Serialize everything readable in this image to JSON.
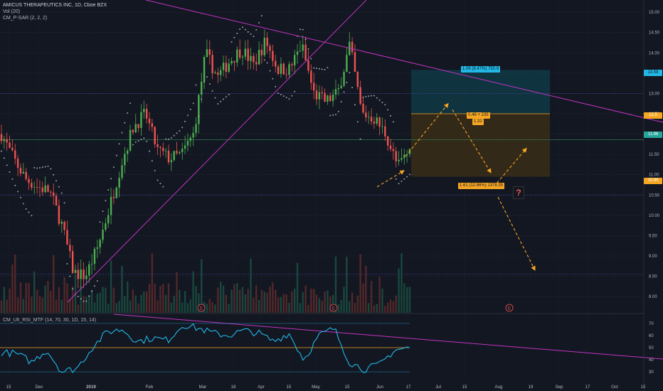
{
  "header": {
    "symbol": "AMICUS THERAPEUTICS INC, 1D, Cboe BZX",
    "vol": "Vol (20)",
    "psar": "CM_P-SAR (2, 2, 2)",
    "rsi": "CM_Ult_RSI_MTF (14, 70, 30, 1D, 15, 14)"
  },
  "colors": {
    "background": "#131722",
    "up": "#26a69a",
    "green_candle": "#4caf50",
    "down": "#ef5350",
    "trendline": "#c233c2",
    "projection": "#f5a623",
    "rsi_line": "#22b8e6",
    "target_zone": "#0e4a5a",
    "stop_zone": "#4a3513",
    "psar_dots": "#b2b5be",
    "mid_line": "#f5a623"
  },
  "badges": {
    "current_price": "13.58",
    "upper_price": "12.5",
    "mid_price": "11.86",
    "lower_price": "10.95",
    "target": "1.06 (8.47%) 750.9",
    "ratio_top": "0.46 + 235",
    "ratio_bottom": "1.32",
    "stop": "1.61 (12.86%) 1378.35",
    "question": "?"
  },
  "chart_data": {
    "type": "candlestick",
    "x_tick_labels": [
      "15",
      "Dec",
      "2019",
      "Feb",
      "Mar",
      "18",
      "Apr",
      "15",
      "May",
      "15",
      "Jun",
      "17",
      "Jul",
      "15",
      "Aug",
      "19",
      "Sep",
      "17",
      "Oct",
      "15"
    ],
    "price_axis": {
      "min": 7.6,
      "max": 15.3,
      "ticks": [
        "15.00",
        "14.50",
        "14.00",
        "13.50",
        "13.00",
        "12.50",
        "12.00",
        "11.50",
        "11.00",
        "10.50",
        "10.00",
        "9.50",
        "9.00",
        "8.50",
        "8.00"
      ]
    },
    "rsi_axis": {
      "min": 23,
      "max": 77,
      "ticks": [
        "70",
        "60",
        "50",
        "40",
        "30"
      ],
      "overbought": 70,
      "oversold": 30,
      "midline": 50
    },
    "horizontal_levels": [
      13.0,
      11.86,
      10.5,
      8.55
    ],
    "earnings_markers": [
      "E",
      "E",
      "E"
    ],
    "price_anchors": [
      12.0,
      11.4,
      10.9,
      10.7,
      10.6,
      9.8,
      8.6,
      8.5,
      9.2,
      10.2,
      11.3,
      12.2,
      12.5,
      11.6,
      11.4,
      11.5,
      12.0,
      14.0,
      13.4,
      13.8,
      14.1,
      13.7,
      14.3,
      13.6,
      13.6,
      14.2,
      13.0,
      12.8,
      13.0,
      14.2,
      12.5,
      12.4,
      12.0,
      11.2,
      11.6
    ],
    "rsi_anchors": [
      46,
      45,
      38,
      48,
      30,
      33,
      50,
      63,
      65,
      55,
      58,
      56,
      69,
      66,
      62,
      60,
      64,
      62,
      55,
      62,
      40,
      60,
      66,
      38,
      32,
      36,
      48,
      50
    ],
    "projection_from_to": [
      [
        11.6,
        12.7
      ],
      [
        12.7,
        11.2
      ],
      [
        10.5,
        11.7
      ],
      [
        10.5,
        8.6
      ]
    ]
  }
}
